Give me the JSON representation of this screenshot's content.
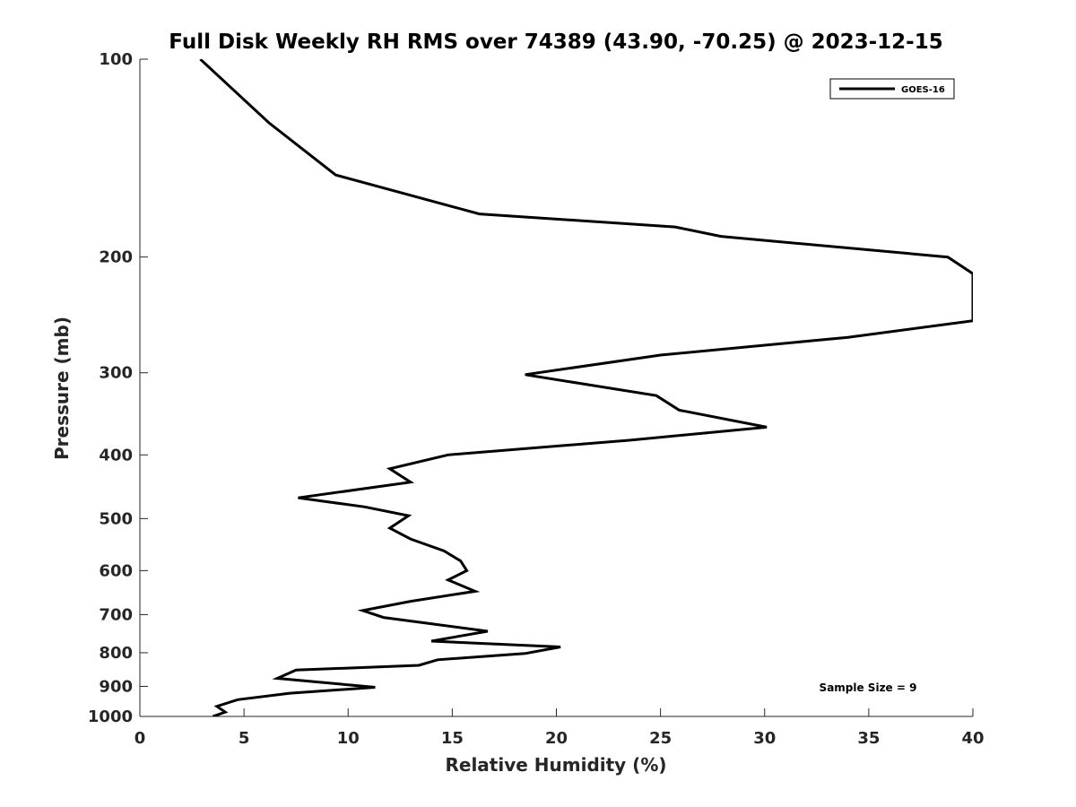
{
  "chart_data": {
    "type": "line",
    "title": "Full Disk Weekly RH RMS over 74389 (43.90, -70.25) @ 2023-12-15",
    "xlabel": "Relative Humidity (%)",
    "ylabel": "Pressure (mb)",
    "xlim": [
      0,
      40
    ],
    "ylim": [
      100,
      1000
    ],
    "y_scale": "log",
    "y_reversed": true,
    "grid": false,
    "legend_position": "top-right",
    "xticks": [
      0,
      5,
      10,
      15,
      20,
      25,
      30,
      35,
      40
    ],
    "xtick_labels": [
      "0",
      "5",
      "10",
      "15",
      "20",
      "25",
      "30",
      "35",
      "40"
    ],
    "yticks": [
      100,
      200,
      300,
      400,
      500,
      600,
      700,
      800,
      900,
      1000
    ],
    "ytick_labels": [
      "100",
      "200",
      "300",
      "400",
      "500",
      "600",
      "700",
      "800",
      "900",
      "1000"
    ],
    "annotation": "Sample Size = 9",
    "series": [
      {
        "name": "GOES-16",
        "color": "#000000",
        "x": [
          2.9,
          6.2,
          9.4,
          16.3,
          25.7,
          27.9,
          38.8,
          40,
          40,
          34,
          25,
          18.5,
          24.8,
          25.9,
          30.1,
          23.5,
          14.8,
          12,
          13,
          7.6,
          10.8,
          12.9,
          12,
          13,
          14.6,
          15.4,
          15.7,
          14.8,
          16.1,
          13,
          10.7,
          11.7,
          16.7,
          14,
          20.2,
          18.5,
          14.3,
          13.4,
          7.5,
          6.6,
          11.3,
          7.2,
          4.7,
          3.7,
          4.1,
          3.5
        ],
        "y": [
          100,
          125,
          150,
          172,
          180,
          186,
          200,
          212,
          250,
          265,
          282,
          302,
          325,
          342,
          363,
          380,
          400,
          420,
          440,
          465,
          480,
          495,
          517,
          537,
          560,
          580,
          600,
          620,
          645,
          668,
          690,
          707,
          742,
          768,
          784,
          802,
          820,
          836,
          850,
          875,
          903,
          922,
          943,
          965,
          985,
          1000
        ]
      }
    ]
  }
}
